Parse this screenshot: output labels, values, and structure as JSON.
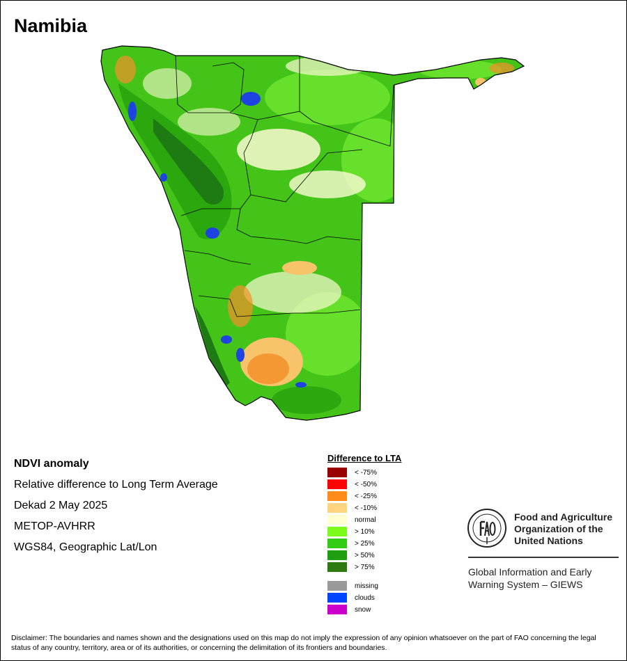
{
  "map": {
    "title": "Namibia",
    "colors": {
      "background": "#ffffff",
      "base_green": "#44c418",
      "light_green": "#66e02a",
      "mid_green": "#2aa80e",
      "dark_green": "#1e7a12",
      "normal": "#fafad2",
      "orange_light": "#f7c36b",
      "orange": "#f3902a",
      "clouds": "#1f43e0",
      "border": "#000000"
    }
  },
  "info": {
    "line1": "NDVI anomaly",
    "line2": "Relative difference to Long Term Average",
    "line3": "Dekad 2 May 2025",
    "line4": "METOP-AVHRR",
    "line5": "WGS84, Geographic Lat/Lon"
  },
  "legend": {
    "title": "Difference to LTA",
    "items": [
      {
        "label": "< -75%",
        "color": "#990000"
      },
      {
        "label": "< -50%",
        "color": "#ff0000"
      },
      {
        "label": "< -25%",
        "color": "#ff8c1a"
      },
      {
        "label": "< -10%",
        "color": "#ffd480"
      },
      {
        "label": "normal",
        "color": "#ffffd0"
      },
      {
        "label": "> 10%",
        "color": "#7cfc1a"
      },
      {
        "label": "> 25%",
        "color": "#33cc14"
      },
      {
        "label": "> 50%",
        "color": "#1f9e10"
      },
      {
        "label": "> 75%",
        "color": "#2c7a10"
      }
    ],
    "extra_items": [
      {
        "label": "missing",
        "color": "#999999"
      },
      {
        "label": "clouds",
        "color": "#0044ff"
      },
      {
        "label": "snow",
        "color": "#cc00cc"
      }
    ]
  },
  "organization": {
    "name_line1": "Food and Agriculture",
    "name_line2": "Organization of the",
    "name_line3": "United Nations",
    "logo_text": "FAO",
    "system_line1": "Global Information and Early",
    "system_line2": "Warning System – GIEWS"
  },
  "disclaimer": "Disclaimer: The boundaries and names shown and the designations used on this map do not imply the expression of any opinion whatsoever on the part of FAO concerning the legal status of any country, territory, area or of its authorities, or concerning the delimitation of its frontiers and boundaries."
}
